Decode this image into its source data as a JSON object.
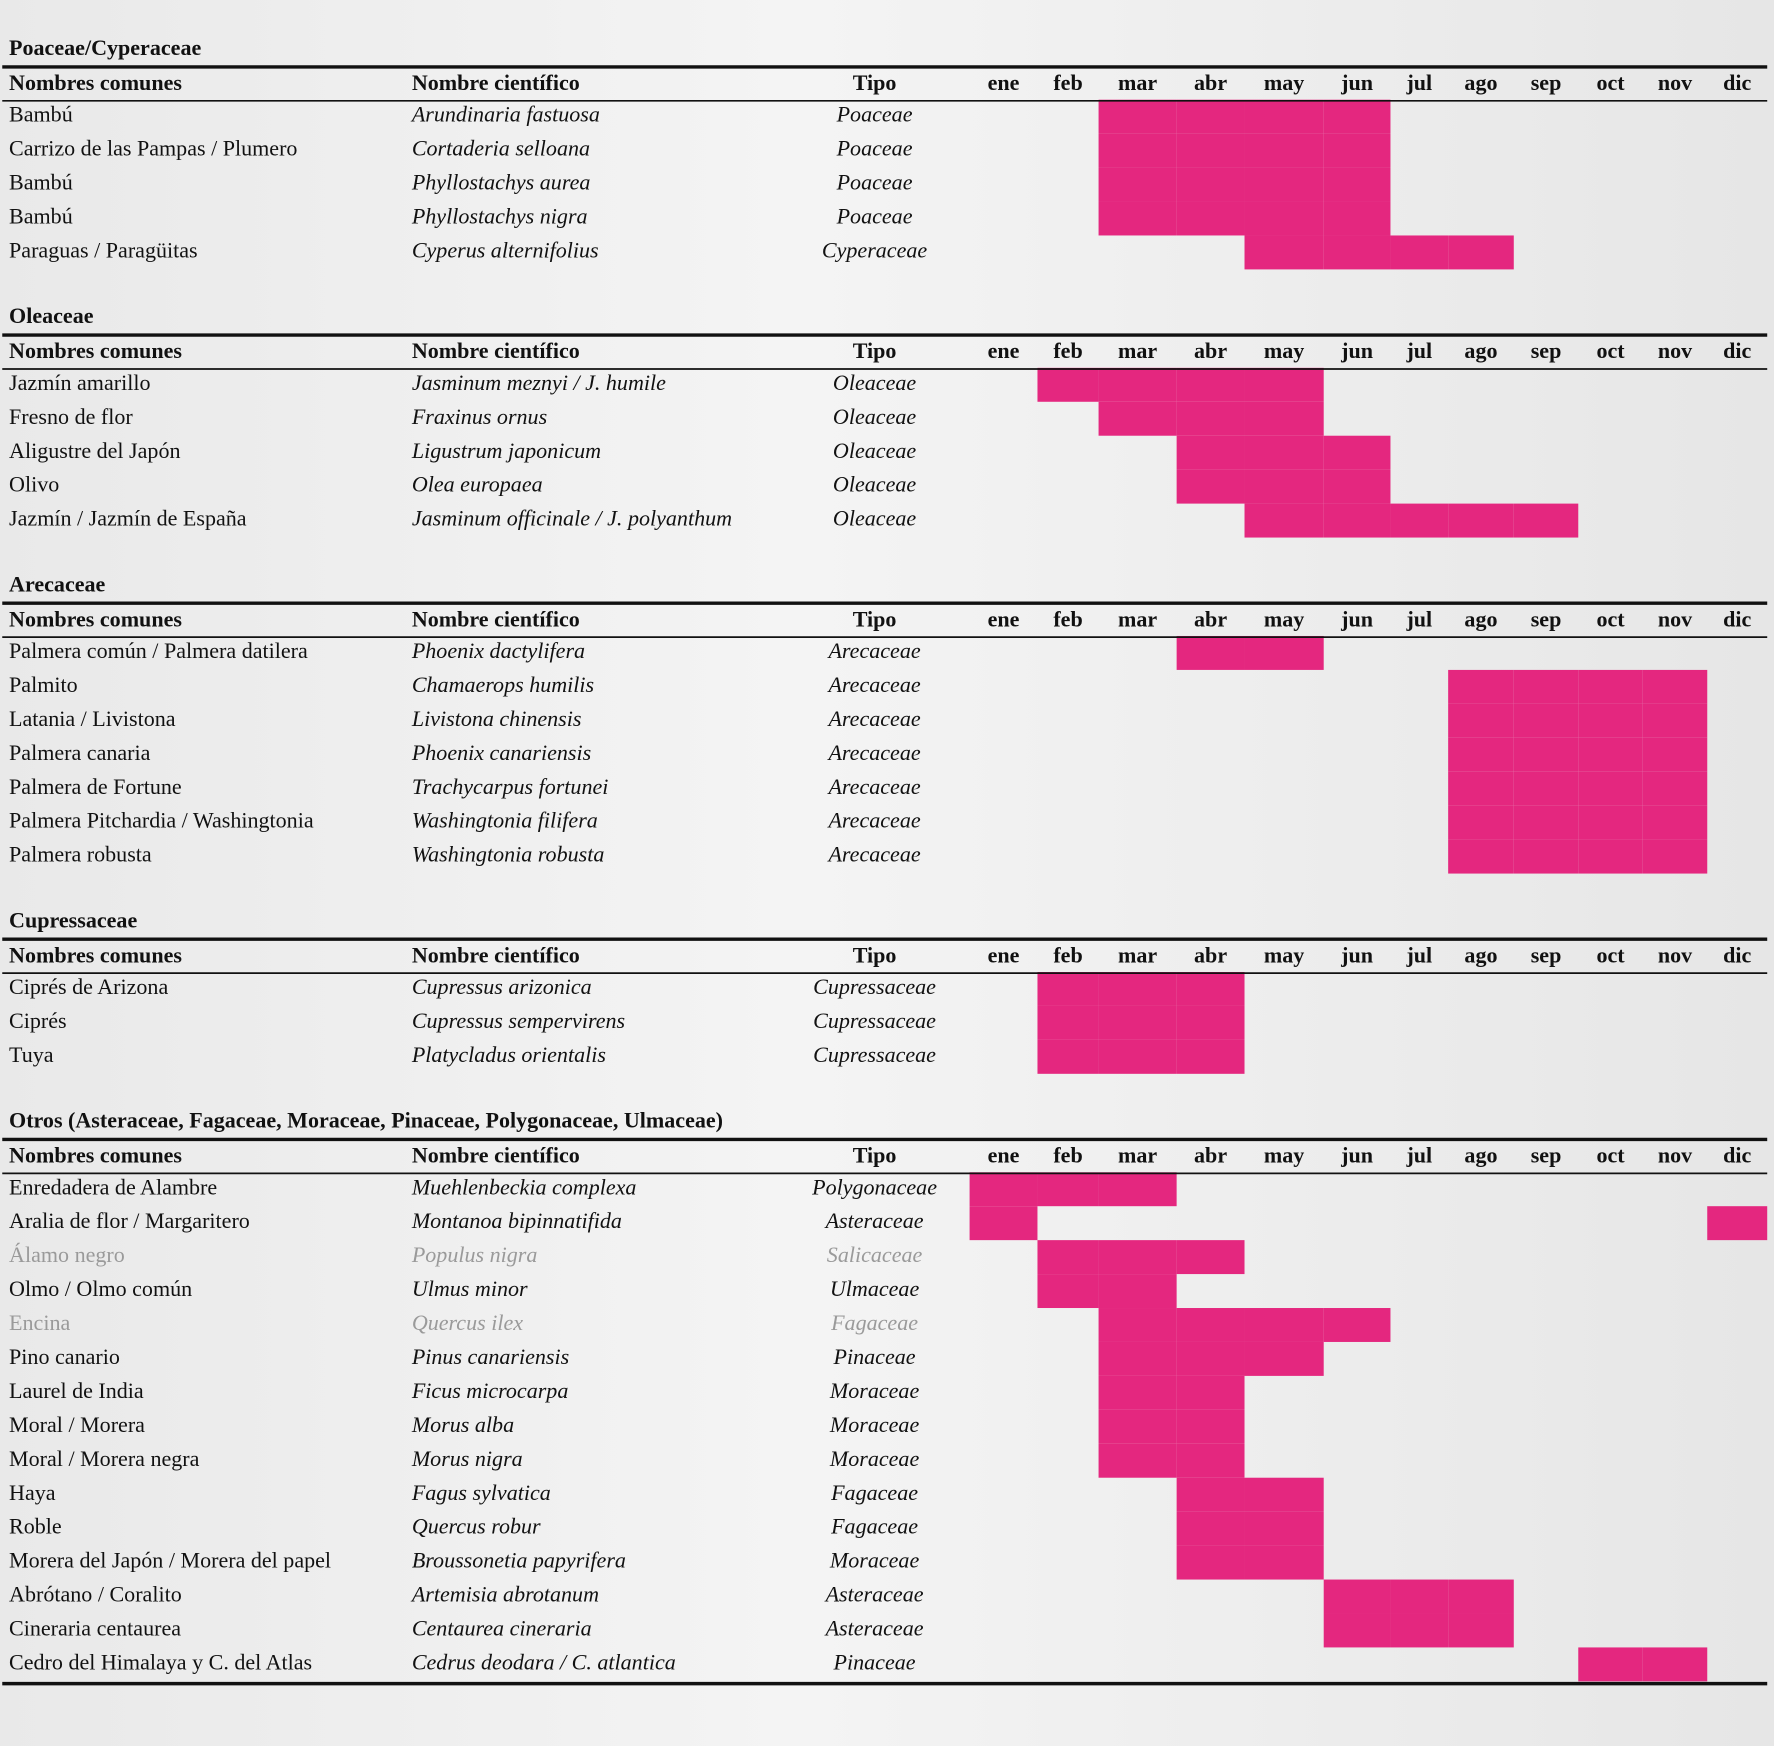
{
  "header": {
    "columns": [
      "Nombres comunes",
      "Nombre científico",
      "Tipo"
    ],
    "months": [
      "ene",
      "feb",
      "mar",
      "abr",
      "may",
      "jun",
      "jul",
      "ago",
      "sep",
      "oct",
      "nov",
      "dic"
    ]
  },
  "sections": [
    {
      "title": "Poaceae/Cyperaceae",
      "rows": [
        {
          "common": "Bambú",
          "scientific": "Arundinaria fastuosa",
          "type": "Poaceae",
          "pollen": [
            0,
            0,
            1,
            1,
            1,
            1,
            0,
            0,
            0,
            0,
            0,
            0
          ]
        },
        {
          "common": "Carrizo de las Pampas / Plumero",
          "scientific": "Cortaderia selloana",
          "type": "Poaceae",
          "pollen": [
            0,
            0,
            1,
            1,
            1,
            1,
            0,
            0,
            0,
            0,
            0,
            0
          ]
        },
        {
          "common": "Bambú",
          "scientific": "Phyllostachys aurea",
          "type": "Poaceae",
          "pollen": [
            0,
            0,
            1,
            1,
            1,
            1,
            0,
            0,
            0,
            0,
            0,
            0
          ]
        },
        {
          "common": "Bambú",
          "scientific": "Phyllostachys nigra",
          "type": "Poaceae",
          "pollen": [
            0,
            0,
            1,
            1,
            1,
            1,
            0,
            0,
            0,
            0,
            0,
            0
          ]
        },
        {
          "common": "Paraguas / Paragüitas",
          "scientific": "Cyperus alternifolius",
          "type": "Cyperaceae",
          "pollen": [
            0,
            0,
            0,
            0,
            1,
            1,
            1,
            1,
            0,
            0,
            0,
            0
          ]
        }
      ]
    },
    {
      "title": "Oleaceae",
      "rows": [
        {
          "common": "Jazmín amarillo",
          "scientific": "Jasminum meznyi / J. humile",
          "type": "Oleaceae",
          "pollen": [
            0,
            1,
            1,
            1,
            1,
            0,
            0,
            0,
            0,
            0,
            0,
            0
          ]
        },
        {
          "common": "Fresno de flor",
          "scientific": "Fraxinus ornus",
          "type": "Oleaceae",
          "pollen": [
            0,
            0,
            1,
            1,
            1,
            0,
            0,
            0,
            0,
            0,
            0,
            0
          ]
        },
        {
          "common": "Aligustre del Japón",
          "scientific": "Ligustrum japonicum",
          "type": "Oleaceae",
          "pollen": [
            0,
            0,
            0,
            1,
            1,
            1,
            0,
            0,
            0,
            0,
            0,
            0
          ]
        },
        {
          "common": "Olivo",
          "scientific": "Olea europaea",
          "type": "Oleaceae",
          "pollen": [
            0,
            0,
            0,
            1,
            1,
            1,
            0,
            0,
            0,
            0,
            0,
            0
          ]
        },
        {
          "common": "Jazmín / Jazmín de España",
          "scientific": "Jasminum officinale / J. polyanthum",
          "type": "Oleaceae",
          "pollen": [
            0,
            0,
            0,
            0,
            1,
            1,
            1,
            1,
            1,
            0,
            0,
            0
          ]
        }
      ]
    },
    {
      "title": "Arecaceae",
      "rows": [
        {
          "common": "Palmera común / Palmera datilera",
          "scientific": "Phoenix dactylifera",
          "type": "Arecaceae",
          "pollen": [
            0,
            0,
            0,
            1,
            1,
            0,
            0,
            0,
            0,
            0,
            0,
            0
          ]
        },
        {
          "common": "Palmito",
          "scientific": "Chamaerops humilis",
          "type": "Arecaceae",
          "pollen": [
            0,
            0,
            0,
            0,
            0,
            0,
            0,
            1,
            1,
            1,
            1,
            0
          ]
        },
        {
          "common": "Latania / Livistona",
          "scientific": "Livistona chinensis",
          "type": "Arecaceae",
          "pollen": [
            0,
            0,
            0,
            0,
            0,
            0,
            0,
            1,
            1,
            1,
            1,
            0
          ]
        },
        {
          "common": "Palmera canaria",
          "scientific": "Phoenix canariensis",
          "type": "Arecaceae",
          "pollen": [
            0,
            0,
            0,
            0,
            0,
            0,
            0,
            1,
            1,
            1,
            1,
            0
          ]
        },
        {
          "common": "Palmera de Fortune",
          "scientific": "Trachycarpus fortunei",
          "type": "Arecaceae",
          "pollen": [
            0,
            0,
            0,
            0,
            0,
            0,
            0,
            1,
            1,
            1,
            1,
            0
          ]
        },
        {
          "common": "Palmera Pitchardia / Washingtonia",
          "scientific": "Washingtonia filifera",
          "type": "Arecaceae",
          "pollen": [
            0,
            0,
            0,
            0,
            0,
            0,
            0,
            1,
            1,
            1,
            1,
            0
          ]
        },
        {
          "common": "Palmera robusta",
          "scientific": "Washingtonia robusta",
          "type": "Arecaceae",
          "pollen": [
            0,
            0,
            0,
            0,
            0,
            0,
            0,
            1,
            1,
            1,
            1,
            0
          ]
        }
      ]
    },
    {
      "title": "Cupressaceae",
      "rows": [
        {
          "common": "Ciprés de Arizona",
          "scientific": "Cupressus arizonica",
          "type": "Cupressaceae",
          "pollen": [
            0,
            1,
            1,
            1,
            0,
            0,
            0,
            0,
            0,
            0,
            0,
            0
          ]
        },
        {
          "common": "Ciprés",
          "scientific": "Cupressus sempervirens",
          "type": "Cupressaceae",
          "pollen": [
            0,
            1,
            1,
            1,
            0,
            0,
            0,
            0,
            0,
            0,
            0,
            0
          ]
        },
        {
          "common": "Tuya",
          "scientific": "Platycladus orientalis",
          "type": "Cupressaceae",
          "pollen": [
            0,
            1,
            1,
            1,
            0,
            0,
            0,
            0,
            0,
            0,
            0,
            0
          ]
        }
      ]
    },
    {
      "title": "Otros (Asteraceae, Fagaceae, Moraceae, Pinaceae, Polygonaceae, Ulmaceae)",
      "rows": [
        {
          "common": "Enredadera de Alambre",
          "scientific": "Muehlenbeckia complexa",
          "type": "Polygonaceae",
          "pollen": [
            1,
            1,
            1,
            0,
            0,
            0,
            0,
            0,
            0,
            0,
            0,
            0
          ]
        },
        {
          "common": "Aralia de flor / Margaritero",
          "scientific": "Montanoa bipinnatifida",
          "type": "Asteraceae",
          "pollen": [
            1,
            0,
            0,
            0,
            0,
            0,
            0,
            0,
            0,
            0,
            0,
            1
          ]
        },
        {
          "common": "Álamo negro",
          "scientific": "Populus nigra",
          "type": "Salicaceae",
          "muted": true,
          "pollen": [
            0,
            1,
            1,
            1,
            0,
            0,
            0,
            0,
            0,
            0,
            0,
            0
          ]
        },
        {
          "common": "Olmo / Olmo común",
          "scientific": "Ulmus minor",
          "type": "Ulmaceae",
          "pollen": [
            0,
            1,
            1,
            0,
            0,
            0,
            0,
            0,
            0,
            0,
            0,
            0
          ]
        },
        {
          "common": "Encina",
          "scientific": "Quercus ilex",
          "type": "Fagaceae",
          "muted": true,
          "pollen": [
            0,
            0,
            1,
            1,
            1,
            1,
            0,
            0,
            0,
            0,
            0,
            0
          ]
        },
        {
          "common": "Pino canario",
          "scientific": "Pinus canariensis",
          "type": "Pinaceae",
          "pollen": [
            0,
            0,
            1,
            1,
            1,
            0,
            0,
            0,
            0,
            0,
            0,
            0
          ]
        },
        {
          "common": "Laurel de India",
          "scientific": "Ficus microcarpa",
          "type": "Moraceae",
          "pollen": [
            0,
            0,
            1,
            1,
            0,
            0,
            0,
            0,
            0,
            0,
            0,
            0
          ]
        },
        {
          "common": "Moral / Morera",
          "scientific": "Morus alba",
          "type": "Moraceae",
          "pollen": [
            0,
            0,
            1,
            1,
            0,
            0,
            0,
            0,
            0,
            0,
            0,
            0
          ]
        },
        {
          "common": "Moral / Morera negra",
          "scientific": "Morus nigra",
          "type": "Moraceae",
          "pollen": [
            0,
            0,
            1,
            1,
            0,
            0,
            0,
            0,
            0,
            0,
            0,
            0
          ]
        },
        {
          "common": "Haya",
          "scientific": "Fagus sylvatica",
          "type": "Fagaceae",
          "pollen": [
            0,
            0,
            0,
            1,
            1,
            0,
            0,
            0,
            0,
            0,
            0,
            0
          ]
        },
        {
          "common": "Roble",
          "scientific": "Quercus robur",
          "type": "Fagaceae",
          "pollen": [
            0,
            0,
            0,
            1,
            1,
            0,
            0,
            0,
            0,
            0,
            0,
            0
          ]
        },
        {
          "common": "Morera del Japón / Morera del papel",
          "scientific": "Broussonetia papyrifera",
          "type": "Moraceae",
          "pollen": [
            0,
            0,
            0,
            1,
            1,
            0,
            0,
            0,
            0,
            0,
            0,
            0
          ]
        },
        {
          "common": "Abrótano / Coralito",
          "scientific": "Artemisia abrotanum",
          "type": "Asteraceae",
          "pollen": [
            0,
            0,
            0,
            0,
            0,
            1,
            1,
            1,
            0,
            0,
            0,
            0
          ]
        },
        {
          "common": "Cineraria centaurea",
          "scientific": "Centaurea cineraria",
          "type": "Asteraceae",
          "pollen": [
            0,
            0,
            0,
            0,
            0,
            1,
            1,
            1,
            0,
            0,
            0,
            0
          ]
        },
        {
          "common": "Cedro del Himalaya y C. del Atlas",
          "scientific": "Cedrus deodara / C. atlantica",
          "type": "Pinaceae",
          "pollen": [
            0,
            0,
            0,
            0,
            0,
            0,
            0,
            0,
            0,
            1,
            1,
            0
          ]
        }
      ]
    }
  ]
}
